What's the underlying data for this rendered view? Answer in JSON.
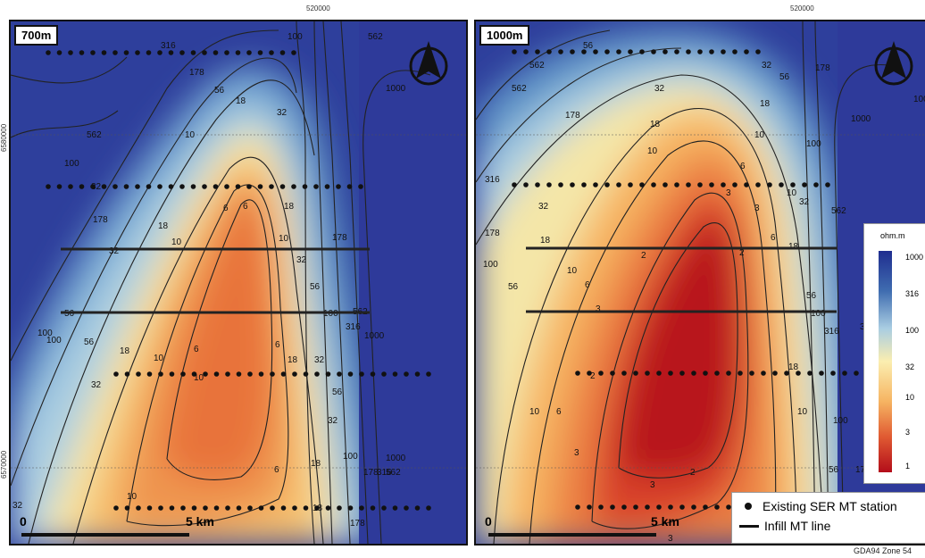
{
  "coords": {
    "easting": "520000",
    "northing_upper": "6580000",
    "northing_lower": "6570000"
  },
  "panels": [
    {
      "depth": "700m",
      "scale_zero": "0",
      "scale_label": "5 km",
      "contour_labels": [
        "316",
        "178",
        "56",
        "100",
        "562",
        "1000",
        "18",
        "32",
        "10",
        "6",
        "562",
        "178",
        "100",
        "56",
        "32",
        "18",
        "10",
        "6",
        "18",
        "10",
        "32",
        "56",
        "100",
        "178",
        "316",
        "562",
        "1000",
        "100",
        "56",
        "32",
        "18",
        "10",
        "6",
        "6",
        "32",
        "18",
        "10",
        "6",
        "18",
        "32",
        "56",
        "100",
        "178",
        "316",
        "562",
        "1000",
        "32",
        "10",
        "18",
        "178",
        "100",
        "32"
      ]
    },
    {
      "depth": "1000m",
      "scale_zero": "0",
      "scale_label": "5 km",
      "contour_labels": [
        "56",
        "562",
        "32",
        "178",
        "18",
        "10",
        "316",
        "562",
        "1000",
        "178",
        "100",
        "56",
        "32",
        "18",
        "10",
        "6",
        "3",
        "2",
        "178",
        "100",
        "56",
        "32",
        "18",
        "10",
        "6",
        "3",
        "2",
        "10",
        "6",
        "3",
        "2",
        "3",
        "10",
        "18",
        "56",
        "100",
        "178",
        "316",
        "2",
        "3",
        "6",
        "10",
        "18",
        "32",
        "56",
        "100",
        "316",
        "562",
        "1000",
        "3"
      ]
    }
  ],
  "legend": {
    "unit": "ohm.m",
    "ticks": [
      "1000",
      "316",
      "100",
      "32",
      "10",
      "3",
      "1"
    ]
  },
  "key": {
    "station": "Existing SER MT station",
    "line": "Infill MT line"
  },
  "crs": "GDA94 Zone 54",
  "colors": {
    "high": "#1f2d8f",
    "low": "#b30d1a",
    "mid": "#fbeeb0"
  }
}
